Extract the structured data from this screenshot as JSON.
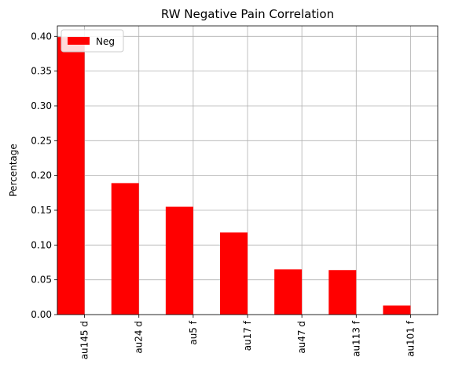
{
  "chart_data": {
    "type": "bar",
    "title": "RW Negative Pain Correlation",
    "xlabel": "",
    "ylabel": "Percentage",
    "categories": [
      "au145 d",
      "au24 d",
      "au5 f",
      "au17 f",
      "au47 d",
      "au113 f",
      "au101 f"
    ],
    "series": [
      {
        "name": "Neg",
        "color": "#ff0000",
        "values": [
          0.399,
          0.189,
          0.155,
          0.118,
          0.065,
          0.064,
          0.013
        ]
      }
    ],
    "ylim": [
      0,
      0.415
    ],
    "yticks": [
      0.0,
      0.05,
      0.1,
      0.15,
      0.2,
      0.25,
      0.3,
      0.35,
      0.4
    ],
    "ytick_labels": [
      "0.00",
      "0.05",
      "0.10",
      "0.15",
      "0.20",
      "0.25",
      "0.30",
      "0.35",
      "0.40"
    ],
    "grid": true,
    "legend": "top-left"
  }
}
